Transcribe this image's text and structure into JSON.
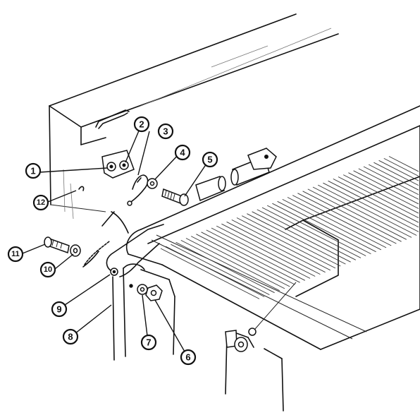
{
  "callouts": [
    {
      "label": "1"
    },
    {
      "label": "2"
    },
    {
      "label": "3"
    },
    {
      "label": "4"
    },
    {
      "label": "5"
    },
    {
      "label": "6"
    },
    {
      "label": "7"
    },
    {
      "label": "8"
    },
    {
      "label": "9"
    },
    {
      "label": "10"
    },
    {
      "label": "11"
    },
    {
      "label": "12"
    }
  ]
}
